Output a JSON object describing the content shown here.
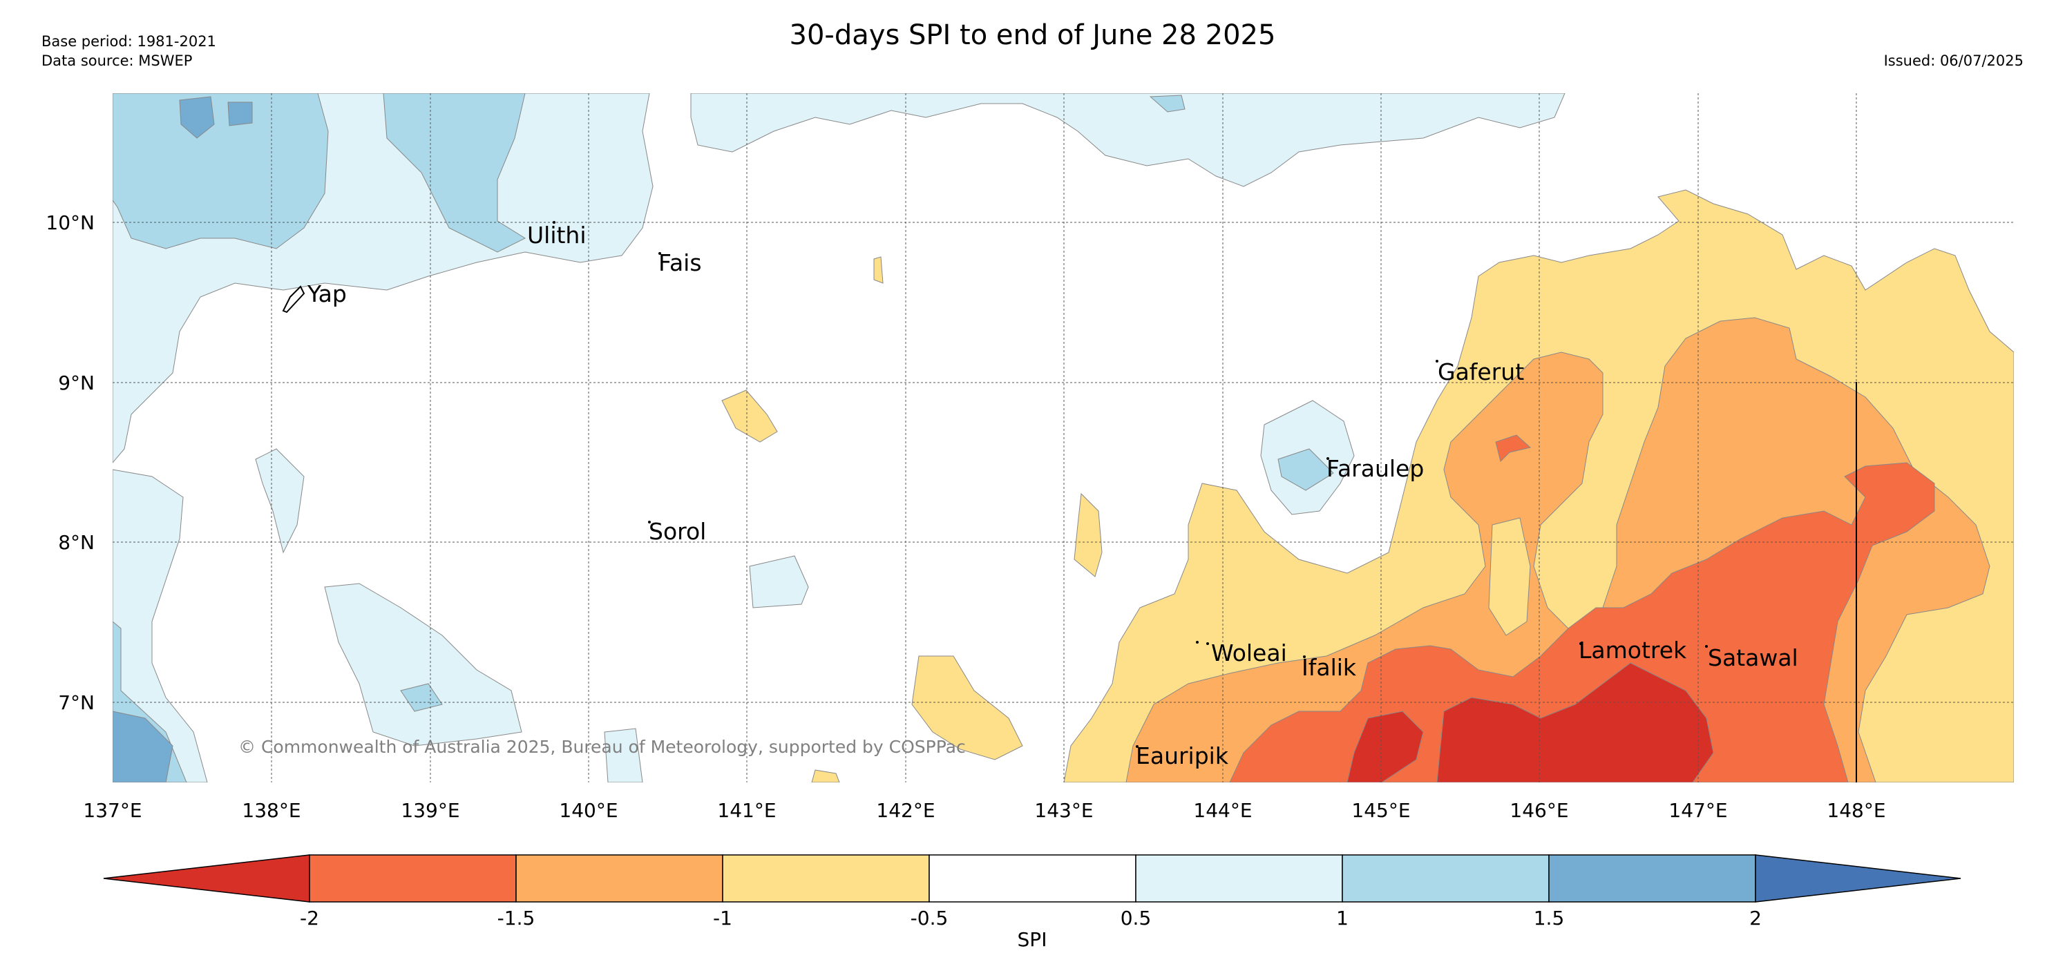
{
  "header": {
    "base_period": "Base period: 1981-2021",
    "data_source": "Data source: MSWEP",
    "title": "30-days SPI to end of June 28 2025",
    "issued": "Issued: 06/07/2025"
  },
  "map": {
    "lon_labels": [
      "137°E",
      "138°E",
      "139°E",
      "140°E",
      "141°E",
      "142°E",
      "143°E",
      "144°E",
      "145°E",
      "146°E",
      "147°E",
      "148°E"
    ],
    "lat_labels": [
      "10°N",
      "9°N",
      "8°N",
      "7°N"
    ],
    "places": [
      {
        "name": "Yap"
      },
      {
        "name": "Ulithi"
      },
      {
        "name": "Fais"
      },
      {
        "name": "Gaferut"
      },
      {
        "name": "Faraulep"
      },
      {
        "name": "Sorol"
      },
      {
        "name": "Woleai"
      },
      {
        "name": "Ifalik"
      },
      {
        "name": "Lamotrek"
      },
      {
        "name": "Satawal"
      },
      {
        "name": "Eauripik"
      }
    ],
    "copyright": "© Commonwealth of Australia 2025, Bureau of Meteorology, supported by COSPPac"
  },
  "colorbar": {
    "label": "SPI",
    "ticks": [
      "-2",
      "-1.5",
      "-1",
      "-0.5",
      "0.5",
      "1",
      "1.5",
      "2"
    ],
    "colors": [
      "#d73027",
      "#f46d43",
      "#fdae61",
      "#fee08b",
      "#ffffff",
      "#e0f3f8",
      "#abd9e9",
      "#74add1",
      "#4575b4"
    ]
  },
  "colors": {
    "very_dry": "#d73027",
    "dry": "#f46d43",
    "moderately_dry": "#fdae61",
    "slightly_dry": "#fee08b",
    "slightly_wet": "#e0f3f8",
    "wet": "#abd9e9",
    "very_wet": "#74add1"
  }
}
